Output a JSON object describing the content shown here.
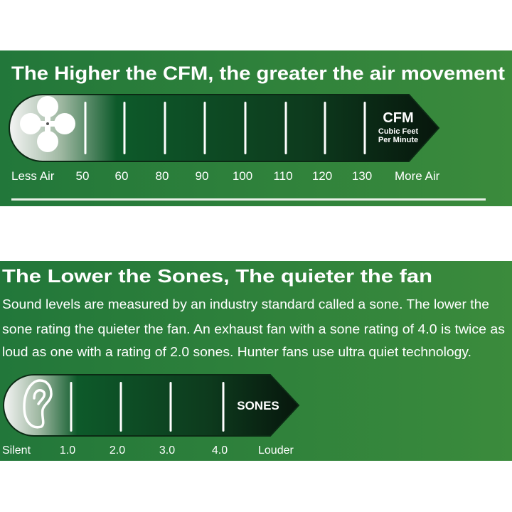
{
  "colors": {
    "panel_green": "#23793a",
    "panel_green_light": "#3f8a3c",
    "arrow_dark": "#0b2414",
    "arrow_light": "#f2f2f2"
  },
  "cfm_panel": {
    "title": "The Higher the CFM, the greater the air movement",
    "icon": "fan-icon",
    "unit": "CFM",
    "unit_sub1": "Cubic Feet",
    "unit_sub2": "Per Minute",
    "low_label": "Less Air",
    "high_label": "More Air",
    "ticks": [
      "50",
      "60",
      "80",
      "90",
      "100",
      "110",
      "120",
      "130"
    ]
  },
  "sones_panel": {
    "title": "The Lower the Sones, The quieter the fan",
    "body_lines": [
      "Sound levels are measured by an industry standard called a sone. The lower the",
      "sone rating the quieter the fan. An exhaust fan with a sone rating of 4.0 is twice as",
      "loud as one with a rating of 2.0 sones. Hunter fans use ultra quiet technology."
    ],
    "icon": "ear-icon",
    "unit": "SONES",
    "low_label": "Silent",
    "high_label": "Louder",
    "ticks": [
      "1.0",
      "2.0",
      "3.0",
      "4.0"
    ]
  }
}
